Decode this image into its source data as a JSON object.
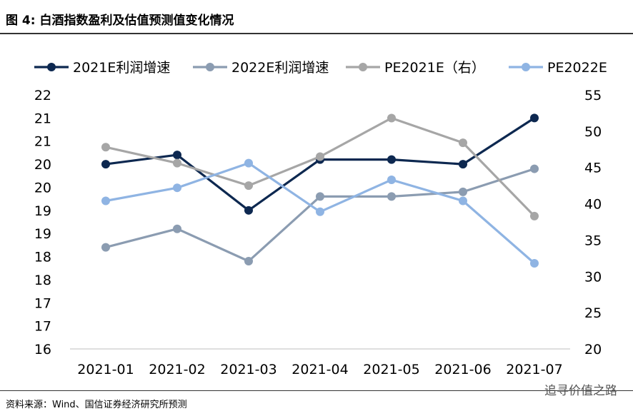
{
  "figure": {
    "title": "图 4: 白酒指数盈利及估值预测值变化情况",
    "source": "资料来源：Wind、国信证券经济研究所预测",
    "watermark": "追寻价值之路"
  },
  "chart_data": {
    "type": "line",
    "categories": [
      "2021-01",
      "2021-02",
      "2021-03",
      "2021-04",
      "2021-05",
      "2021-06",
      "2021-07"
    ],
    "left_axis": {
      "ticks": [
        "22",
        "21",
        "21",
        "20",
        "20",
        "19",
        "19",
        "18",
        "18",
        "17",
        "17",
        "16"
      ],
      "ylim": [
        16,
        21.5
      ]
    },
    "right_axis": {
      "ticks": [
        "55",
        "50",
        "45",
        "40",
        "35",
        "30",
        "25",
        "20"
      ],
      "ylim": [
        20,
        55
      ]
    },
    "legend_position": "top",
    "series": [
      {
        "name": "2021E利润增速",
        "axis": "left",
        "color": "#0d2850",
        "values": [
          20.0,
          20.2,
          19.0,
          20.1,
          20.1,
          20.0,
          21.0
        ]
      },
      {
        "name": "2022E利润增速",
        "axis": "left",
        "color": "#8b9cb1",
        "values": [
          18.2,
          18.6,
          17.9,
          19.3,
          19.3,
          19.4,
          19.9
        ]
      },
      {
        "name": "PE2021E（右）",
        "axis": "right",
        "color": "#a6a6a6",
        "values": [
          47.8,
          45.6,
          42.5,
          46.5,
          51.8,
          48.4,
          38.3
        ]
      },
      {
        "name": "PE2022E",
        "axis": "right",
        "color": "#8fb4e3",
        "values": [
          40.4,
          42.2,
          45.6,
          38.9,
          43.3,
          40.4,
          31.8
        ]
      }
    ]
  }
}
